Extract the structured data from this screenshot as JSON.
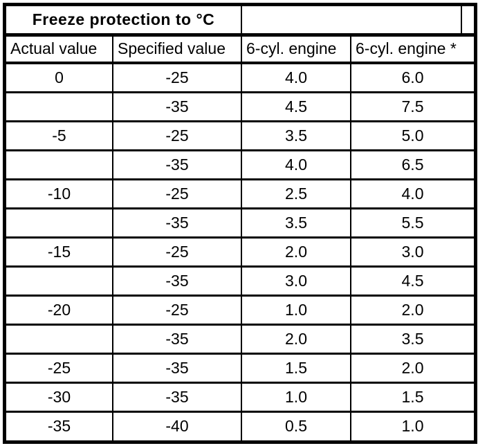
{
  "table": {
    "title": "Freeze protection to °C",
    "columns": [
      "Actual value",
      "Specified value",
      "6-cyl. engine",
      "6-cyl. engine *"
    ],
    "rows": [
      [
        "0",
        "-25",
        "4.0",
        "6.0"
      ],
      [
        "",
        "-35",
        "4.5",
        "7.5"
      ],
      [
        "-5",
        "-25",
        "3.5",
        "5.0"
      ],
      [
        "",
        "-35",
        "4.0",
        "6.5"
      ],
      [
        "-10",
        "-25",
        "2.5",
        "4.0"
      ],
      [
        "",
        "-35",
        "3.5",
        "5.5"
      ],
      [
        "-15",
        "-25",
        "2.0",
        "3.0"
      ],
      [
        "",
        "-35",
        "3.0",
        "4.5"
      ],
      [
        "-20",
        "-25",
        "1.0",
        "2.0"
      ],
      [
        "",
        "-35",
        "2.0",
        "3.5"
      ],
      [
        "-25",
        "-35",
        "1.5",
        "2.0"
      ],
      [
        "-30",
        "-35",
        "1.0",
        "1.5"
      ],
      [
        "-35",
        "-40",
        "0.5",
        "1.0"
      ]
    ]
  }
}
